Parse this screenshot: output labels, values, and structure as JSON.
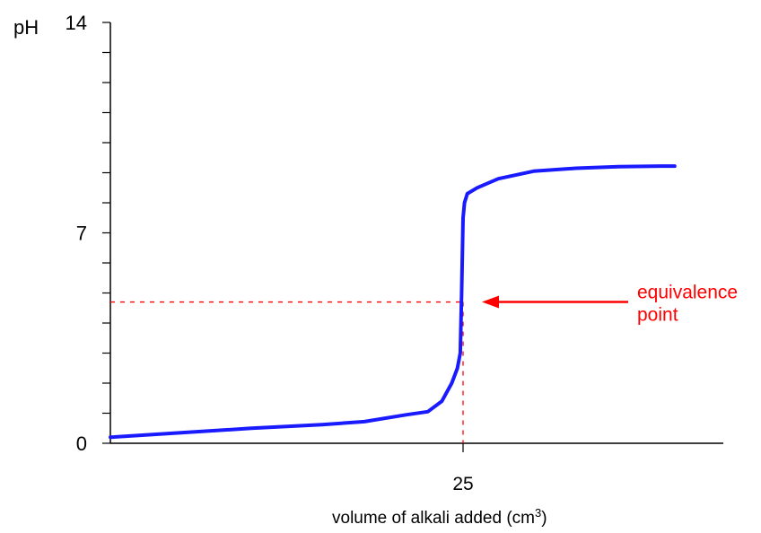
{
  "chart_data": {
    "type": "line",
    "title": "",
    "ylabel": "pH",
    "xlabel": "volume of alkali added (cm",
    "xlabel_superscript": "3",
    "xlabel_suffix": ")",
    "y_ticks": [
      {
        "value": 0,
        "label": "0"
      },
      {
        "value": 7,
        "label": "7"
      },
      {
        "value": 14,
        "label": "14"
      }
    ],
    "y_minor_step": 1,
    "x_ticks": [
      {
        "value": 25,
        "label": "25"
      }
    ],
    "xlim": [
      0,
      43
    ],
    "ylim": [
      0,
      14
    ],
    "series": [
      {
        "name": "",
        "color": "#1a1aff",
        "x": [
          0,
          5,
          10,
          15,
          18,
          21,
          22.5,
          23.5,
          24.2,
          24.6,
          24.8,
          24.9,
          25.0,
          25.1,
          25.3,
          26,
          27.5,
          30,
          33,
          36,
          39,
          40
        ],
        "y": [
          0.2,
          0.35,
          0.5,
          0.62,
          0.72,
          0.95,
          1.05,
          1.4,
          2.0,
          2.5,
          3.0,
          5.0,
          7.5,
          8.0,
          8.3,
          8.5,
          8.8,
          9.05,
          9.15,
          9.2,
          9.22,
          9.22
        ]
      }
    ],
    "equivalence_point": {
      "x": 25,
      "y": 4.7
    },
    "annotation": {
      "lines": [
        "equivalence",
        "point"
      ],
      "color": "#ff0000"
    },
    "grid": false,
    "legend": "none"
  }
}
